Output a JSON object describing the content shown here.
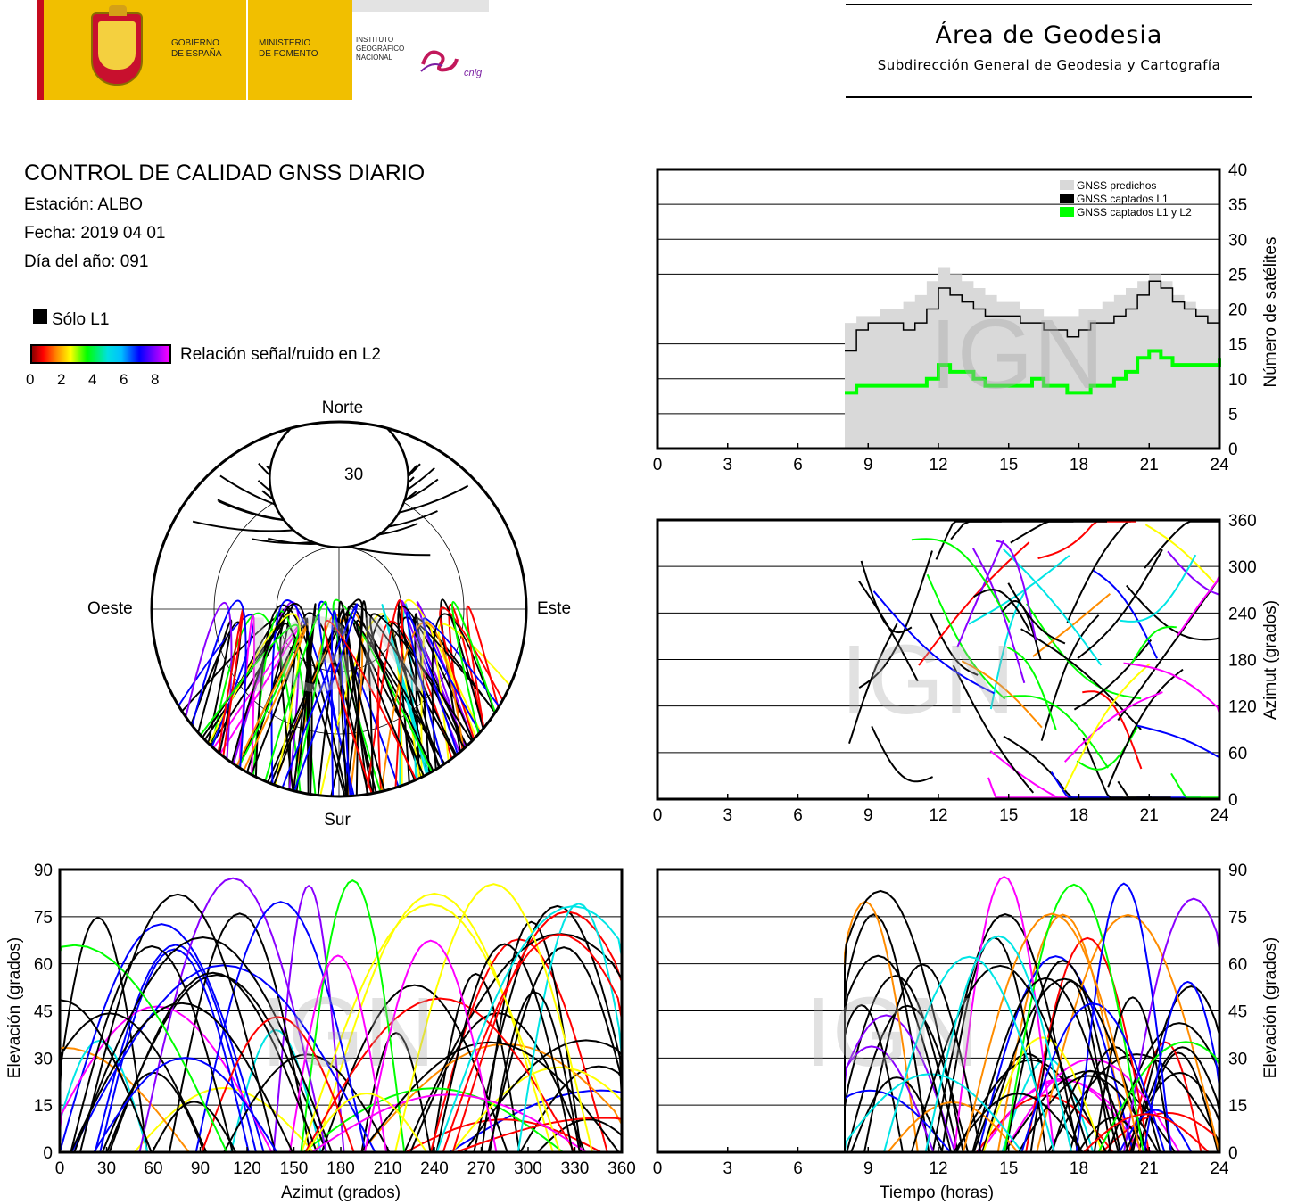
{
  "header": {
    "logo_gov_text": [
      "GOBIERNO",
      "DE ESPAÑA"
    ],
    "logo_min_text": [
      "MINISTERIO",
      "DE FOMENTO"
    ],
    "logo_inst_text": [
      "INSTITUTO",
      "GEOGRÁFICO",
      "NACIONAL"
    ],
    "logo_cnig": "cnig",
    "title": "Área de Geodesia",
    "subtitle": "Subdirección General de Geodesia y Cartografía"
  },
  "info": {
    "title": "CONTROL DE CALIDAD GNSS DIARIO",
    "station": "Estación: ALBO",
    "date": "Fecha: 2019 04 01",
    "doy": "Día del año: 091"
  },
  "legend": {
    "solo_l1": "Sólo L1",
    "snr_label": "Relación señal/ruido en L2",
    "snr_ticks": [
      "0",
      "2",
      "4",
      "6",
      "8"
    ]
  },
  "watermark": "IGN",
  "colors": {
    "predicted": "#d9d9d9",
    "l1": "#000000",
    "l1l2": "#00ff00",
    "snr_scale": [
      "#ff0000",
      "#ff8c00",
      "#ffff00",
      "#00ff00",
      "#00e5e5",
      "#0000ff",
      "#8a00ff",
      "#ff00ff"
    ]
  },
  "chart_data": [
    {
      "id": "satellite-count",
      "type": "area",
      "xlabel": "",
      "ylabel": "Número de satélites",
      "xlim": [
        0,
        24
      ],
      "ylim": [
        0,
        40
      ],
      "xticks": [
        0,
        3,
        6,
        9,
        12,
        15,
        18,
        21,
        24
      ],
      "yticks": [
        0,
        5,
        10,
        15,
        20,
        25,
        30,
        35,
        40
      ],
      "grid": "horizontal",
      "legend_position": "top-right",
      "x": [
        8,
        8.5,
        9,
        9.5,
        10,
        10.5,
        11,
        11.5,
        12,
        12.5,
        13,
        13.5,
        14,
        14.5,
        15,
        15.5,
        16,
        16.5,
        17,
        17.5,
        18,
        18.5,
        19,
        19.5,
        20,
        20.5,
        21,
        21.5,
        22,
        22.5,
        23,
        23.5,
        24
      ],
      "series": [
        {
          "name": "GNSS predichos",
          "values": [
            18,
            19,
            19,
            20,
            20,
            21,
            22,
            24,
            26,
            25,
            24,
            23,
            22,
            21,
            21,
            20,
            20,
            19,
            19,
            19,
            20,
            20,
            21,
            22,
            23,
            24,
            25,
            24,
            22,
            21,
            20,
            20,
            21
          ]
        },
        {
          "name": "GNSS captados L1",
          "values": [
            14,
            17,
            18,
            18,
            18,
            17,
            18,
            20,
            23,
            22,
            21,
            20,
            19,
            19,
            19,
            18,
            18,
            17,
            17,
            16,
            17,
            18,
            18,
            19,
            20,
            22,
            24,
            23,
            21,
            20,
            19,
            18,
            20
          ]
        },
        {
          "name": "GNSS captados L1 y L2",
          "values": [
            8,
            9,
            9,
            9,
            9,
            9,
            9,
            10,
            12,
            11,
            11,
            10,
            9,
            9,
            9,
            9,
            10,
            9,
            9,
            8,
            8,
            9,
            9,
            10,
            11,
            13,
            14,
            13,
            12,
            12,
            12,
            12,
            13
          ]
        }
      ]
    },
    {
      "id": "sky-plot",
      "type": "scatter",
      "projection": "polar azimuth-elevation",
      "ring_label": "30",
      "directions": {
        "north": "Norte",
        "south": "Sur",
        "east": "Este",
        "west": "Oeste"
      }
    },
    {
      "id": "azimuth-time",
      "type": "scatter",
      "xlabel": "",
      "ylabel": "Azimut (grados)",
      "xlim": [
        0,
        24
      ],
      "ylim": [
        0,
        360
      ],
      "xticks": [
        0,
        3,
        6,
        9,
        12,
        15,
        18,
        21,
        24
      ],
      "yticks": [
        0,
        60,
        120,
        180,
        240,
        300,
        360
      ],
      "grid": "horizontal"
    },
    {
      "id": "elevation-azimuth",
      "type": "scatter",
      "xlabel": "Azimut (grados)",
      "ylabel": "Elevación (grados)",
      "xlim": [
        0,
        360
      ],
      "ylim": [
        0,
        90
      ],
      "xticks": [
        0,
        30,
        60,
        90,
        120,
        150,
        180,
        210,
        240,
        270,
        300,
        330,
        360
      ],
      "yticks": [
        0,
        15,
        30,
        45,
        60,
        75,
        90
      ],
      "grid": "horizontal"
    },
    {
      "id": "elevation-time",
      "type": "line",
      "xlabel": "Tiempo (horas)",
      "ylabel": "Elevación (grados)",
      "xlim": [
        0,
        24
      ],
      "ylim": [
        0,
        90
      ],
      "xticks": [
        0,
        3,
        6,
        9,
        12,
        15,
        18,
        21,
        24
      ],
      "yticks": [
        0,
        15,
        30,
        45,
        60,
        75,
        90
      ],
      "grid": "horizontal"
    }
  ]
}
